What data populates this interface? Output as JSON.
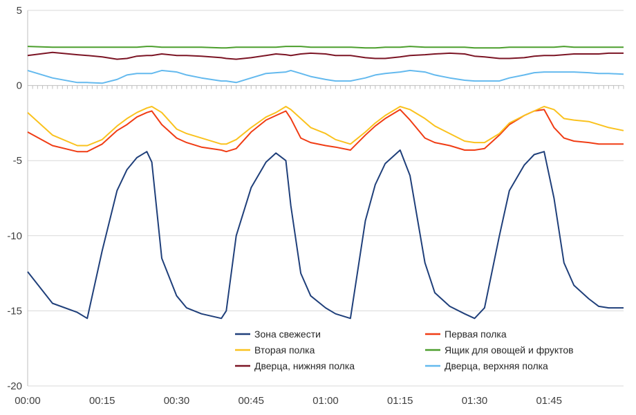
{
  "chart_data": {
    "type": "line",
    "title": "",
    "xlabel": "",
    "ylabel": "",
    "ylim": [
      -20,
      5
    ],
    "y_ticks": [
      "5",
      "0",
      "-5",
      "-10",
      "-15",
      "-20"
    ],
    "x_tick_labels": [
      "00:00",
      "00:15",
      "00:30",
      "00:45",
      "01:00",
      "01:15",
      "01:30",
      "01:45"
    ],
    "x_range_minutes": [
      0,
      120
    ],
    "grid": "horizontal",
    "legend_position": "bottom-center",
    "x_minutes": [
      0,
      5,
      10,
      12,
      15,
      18,
      20,
      22,
      24,
      25,
      27,
      30,
      32,
      35,
      39,
      40,
      42,
      45,
      48,
      50,
      52,
      53,
      55,
      57,
      60,
      62,
      65,
      68,
      70,
      72,
      75,
      77,
      80,
      82,
      85,
      88,
      90,
      92,
      95,
      97,
      100,
      102,
      104,
      106,
      108,
      110,
      113,
      115,
      117,
      120
    ],
    "series": [
      {
        "name": "Зона свежести",
        "color": "#1f3f7a",
        "values": [
          -12.4,
          -14.5,
          -15.1,
          -15.5,
          -11.0,
          -7.0,
          -5.6,
          -4.8,
          -4.4,
          -5.1,
          -11.5,
          -14.0,
          -14.8,
          -15.2,
          -15.5,
          -15.0,
          -10.0,
          -6.8,
          -5.1,
          -4.5,
          -5.0,
          -8.0,
          -12.5,
          -14.0,
          -14.8,
          -15.2,
          -15.5,
          -9.0,
          -6.6,
          -5.2,
          -4.3,
          -6.0,
          -11.8,
          -13.8,
          -14.7,
          -15.2,
          -15.5,
          -14.8,
          -10.0,
          -7.0,
          -5.3,
          -4.6,
          -4.4,
          -7.5,
          -11.8,
          -13.3,
          -14.2,
          -14.7,
          -14.8,
          -14.8
        ]
      },
      {
        "name": "Первая полка",
        "color": "#f03c14",
        "values": [
          -3.1,
          -4.0,
          -4.4,
          -4.4,
          -3.9,
          -3.0,
          -2.6,
          -2.1,
          -1.8,
          -1.7,
          -2.6,
          -3.5,
          -3.8,
          -4.1,
          -4.3,
          -4.4,
          -4.2,
          -3.1,
          -2.3,
          -2.0,
          -1.7,
          -2.2,
          -3.5,
          -3.8,
          -4.0,
          -4.1,
          -4.3,
          -3.3,
          -2.7,
          -2.2,
          -1.6,
          -2.3,
          -3.5,
          -3.8,
          -4.0,
          -4.3,
          -4.3,
          -4.2,
          -3.3,
          -2.6,
          -2.0,
          -1.7,
          -1.6,
          -2.8,
          -3.5,
          -3.7,
          -3.8,
          -3.9,
          -3.9,
          -3.9
        ]
      },
      {
        "name": "Вторая полка",
        "color": "#fac21e",
        "values": [
          -1.8,
          -3.3,
          -4.0,
          -4.0,
          -3.6,
          -2.7,
          -2.2,
          -1.8,
          -1.5,
          -1.4,
          -1.8,
          -2.9,
          -3.2,
          -3.5,
          -3.9,
          -3.9,
          -3.6,
          -2.8,
          -2.1,
          -1.8,
          -1.4,
          -1.6,
          -2.2,
          -2.8,
          -3.2,
          -3.6,
          -3.9,
          -3.1,
          -2.5,
          -2.0,
          -1.4,
          -1.6,
          -2.2,
          -2.7,
          -3.2,
          -3.7,
          -3.8,
          -3.8,
          -3.2,
          -2.5,
          -2.0,
          -1.7,
          -1.4,
          -1.6,
          -2.2,
          -2.3,
          -2.4,
          -2.6,
          -2.8,
          -3.0
        ]
      },
      {
        "name": "Ящик для овощей и фруктов",
        "color": "#4b9e2c",
        "values": [
          2.6,
          2.55,
          2.55,
          2.55,
          2.55,
          2.55,
          2.55,
          2.55,
          2.6,
          2.6,
          2.55,
          2.55,
          2.55,
          2.55,
          2.5,
          2.5,
          2.55,
          2.55,
          2.55,
          2.55,
          2.6,
          2.6,
          2.6,
          2.55,
          2.55,
          2.55,
          2.55,
          2.5,
          2.5,
          2.55,
          2.55,
          2.6,
          2.55,
          2.55,
          2.55,
          2.55,
          2.5,
          2.5,
          2.5,
          2.55,
          2.55,
          2.55,
          2.55,
          2.55,
          2.6,
          2.55,
          2.55,
          2.55,
          2.55,
          2.55
        ]
      },
      {
        "name": "Дверца, нижняя полка",
        "color": "#7b1424",
        "values": [
          2.0,
          2.2,
          2.05,
          2.0,
          1.9,
          1.75,
          1.8,
          1.95,
          2.0,
          2.0,
          2.1,
          2.0,
          2.0,
          1.95,
          1.85,
          1.8,
          1.75,
          1.85,
          2.0,
          2.1,
          2.05,
          2.0,
          2.1,
          2.15,
          2.1,
          2.0,
          2.0,
          1.85,
          1.8,
          1.8,
          1.9,
          2.0,
          2.05,
          2.1,
          2.15,
          2.1,
          1.95,
          1.9,
          1.8,
          1.8,
          1.85,
          1.95,
          2.0,
          2.0,
          2.05,
          2.1,
          2.1,
          2.1,
          2.15,
          2.15
        ]
      },
      {
        "name": "Дверца, верхняя полка",
        "color": "#63b9ee",
        "values": [
          1.0,
          0.5,
          0.2,
          0.2,
          0.15,
          0.4,
          0.7,
          0.8,
          0.8,
          0.8,
          1.0,
          0.9,
          0.7,
          0.5,
          0.3,
          0.3,
          0.2,
          0.5,
          0.8,
          0.85,
          0.9,
          1.0,
          0.8,
          0.6,
          0.4,
          0.3,
          0.3,
          0.5,
          0.7,
          0.8,
          0.9,
          1.0,
          0.9,
          0.7,
          0.5,
          0.35,
          0.3,
          0.3,
          0.3,
          0.5,
          0.7,
          0.85,
          0.9,
          0.9,
          0.9,
          0.9,
          0.85,
          0.8,
          0.8,
          0.75
        ]
      }
    ]
  }
}
